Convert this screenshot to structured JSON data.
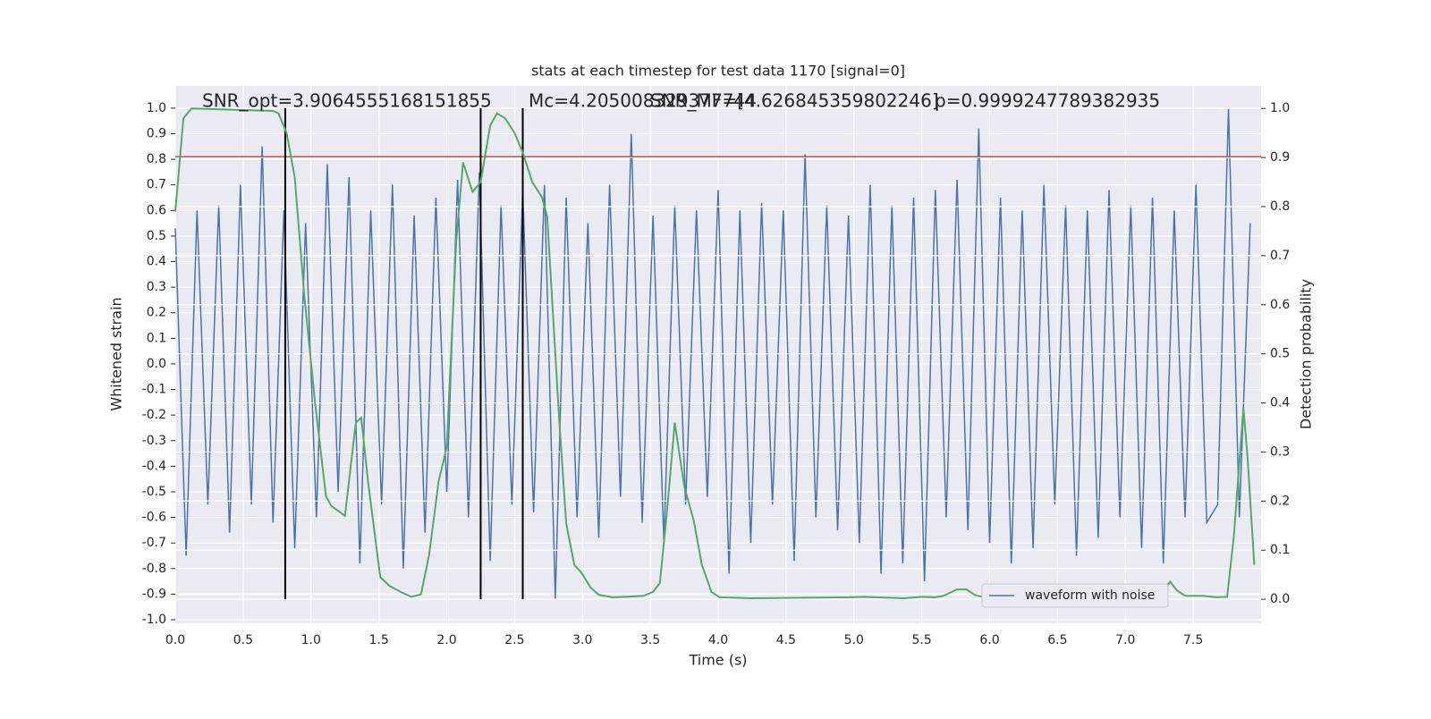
{
  "chart_data": {
    "type": "line",
    "title": "stats at each timestep for test data 1170 [signal=0]",
    "xlabel": "Time (s)",
    "ylabel": "Whitened strain",
    "y2label": "Detection probability",
    "annotations": [
      "SNR_opt=3.9064555168151855",
      "Mc=4.205008329377744",
      "SNR_MF=[4.626845359802246]",
      "p=0.9999247789382935"
    ],
    "xlim": [
      0,
      8.0
    ],
    "ylim": [
      -1.014,
      1.087
    ],
    "y2lim": [
      -0.049,
      1.046
    ],
    "xticks": [
      {
        "value": 0,
        "label": "0.0"
      },
      0.5,
      {
        "value": 1,
        "label": "1.0"
      },
      1.5,
      {
        "value": 2,
        "label": "2.0"
      },
      2.5,
      {
        "value": 3,
        "label": "3.0"
      },
      3.5,
      {
        "value": 4,
        "label": "4.0"
      },
      4.5,
      {
        "value": 5,
        "label": "5.0"
      },
      5.5,
      {
        "value": 6,
        "label": "6.0"
      },
      6.5,
      {
        "value": 7,
        "label": "7.0"
      },
      7.5
    ],
    "yticks": [
      {
        "value": -1,
        "label": "-1.0"
      },
      -0.9,
      -0.8,
      -0.7,
      -0.6,
      -0.5,
      -0.4,
      -0.3,
      -0.2,
      -0.1,
      {
        "value": 0,
        "label": "0.0"
      },
      0.1,
      0.2,
      0.3,
      0.4,
      0.5,
      0.6,
      0.7,
      0.8,
      0.9,
      {
        "value": 1,
        "label": "1.0"
      }
    ],
    "y2ticks": [
      {
        "value": 0,
        "label": "0.0"
      },
      0.1,
      0.2,
      0.3,
      0.4,
      0.5,
      0.6,
      0.7,
      0.8,
      0.9,
      {
        "value": 1,
        "label": "1.0"
      }
    ],
    "grid": true,
    "legend": "lower right",
    "hlines": [
      {
        "value": 0.81,
        "color": "#c44e52"
      }
    ],
    "vlines": [
      {
        "value": 0.81,
        "color": "#000000"
      },
      {
        "value": 2.25,
        "color": "#000000"
      },
      {
        "value": 2.56,
        "color": "#000000"
      }
    ],
    "vline_range": [
      -0.92,
      1.0
    ],
    "series": [
      {
        "name": "waveform with noise",
        "color": "#4c72b0",
        "x": [
          0,
          0.08,
          0.16,
          0.24,
          0.32,
          0.4,
          0.48,
          0.56,
          0.64,
          0.72,
          0.8,
          0.88,
          0.96,
          1.04,
          1.12,
          1.2,
          1.28,
          1.36,
          1.44,
          1.52,
          1.6,
          1.68,
          1.76,
          1.84,
          1.92,
          2.0,
          2.08,
          2.16,
          2.24,
          2.32,
          2.4,
          2.48,
          2.56,
          2.64,
          2.72,
          2.8,
          2.88,
          2.96,
          3.04,
          3.12,
          3.2,
          3.28,
          3.36,
          3.44,
          3.52,
          3.6,
          3.68,
          3.76,
          3.84,
          3.92,
          4.0,
          4.08,
          4.16,
          4.24,
          4.32,
          4.4,
          4.48,
          4.56,
          4.64,
          4.72,
          4.8,
          4.88,
          4.96,
          5.04,
          5.12,
          5.2,
          5.28,
          5.36,
          5.44,
          5.52,
          5.6,
          5.68,
          5.76,
          5.84,
          5.92,
          6.0,
          6.08,
          6.16,
          6.24,
          6.32,
          6.4,
          6.48,
          6.56,
          6.64,
          6.72,
          6.8,
          6.88,
          6.96,
          7.04,
          7.12,
          7.2,
          7.28,
          7.36,
          7.44,
          7.52,
          7.6,
          7.68,
          7.76,
          7.84,
          7.92
        ],
        "values": [
          0.53,
          -0.75,
          0.6,
          -0.55,
          0.62,
          -0.66,
          0.7,
          -0.55,
          0.85,
          -0.62,
          0.6,
          -0.72,
          0.55,
          -0.6,
          0.78,
          -0.5,
          0.73,
          -0.78,
          0.6,
          -0.55,
          0.7,
          -0.8,
          0.58,
          -0.66,
          0.65,
          -0.5,
          0.72,
          -0.6,
          0.75,
          -0.77,
          0.62,
          -0.55,
          0.68,
          -0.58,
          0.7,
          -0.92,
          0.65,
          -0.6,
          0.55,
          -0.68,
          0.7,
          -0.52,
          0.9,
          -0.62,
          0.58,
          -0.7,
          0.62,
          -0.55,
          0.6,
          -0.52,
          0.68,
          -0.82,
          0.6,
          -0.7,
          0.63,
          -0.55,
          0.6,
          -0.77,
          0.82,
          -0.6,
          0.62,
          -0.65,
          0.58,
          -0.7,
          0.7,
          -0.82,
          0.62,
          -0.78,
          0.65,
          -0.85,
          0.68,
          -0.6,
          0.72,
          -0.65,
          0.92,
          -0.7,
          0.65,
          -0.78,
          0.6,
          -0.72,
          0.7,
          -0.55,
          0.62,
          -0.75,
          0.6,
          -0.68,
          0.68,
          -0.6,
          0.62,
          -0.72,
          0.65,
          -0.78,
          0.6,
          -0.6,
          0.7,
          -0.62,
          -0.55,
          1.0,
          -0.6,
          0.55
        ]
      },
      {
        "color": "#55a868",
        "axis": "y2",
        "x": [
          0,
          0.06,
          0.12,
          0.72,
          0.76,
          0.82,
          0.88,
          0.95,
          1.03,
          1.11,
          1.15,
          1.25,
          1.33,
          1.37,
          1.42,
          1.51,
          1.58,
          1.66,
          1.74,
          1.81,
          1.87,
          1.94,
          2.0,
          2.07,
          2.12,
          2.19,
          2.25,
          2.32,
          2.37,
          2.43,
          2.5,
          2.56,
          2.63,
          2.7,
          2.74,
          2.83,
          2.88,
          2.94,
          2.99,
          3.06,
          3.12,
          3.22,
          3.32,
          3.45,
          3.52,
          3.57,
          3.62,
          3.68,
          3.75,
          3.82,
          3.88,
          3.95,
          4.01,
          4.24,
          4.97,
          5.07,
          5.37,
          5.5,
          5.6,
          5.66,
          5.76,
          5.83,
          5.89,
          5.96,
          6.16,
          6.32,
          6.39,
          6.45,
          6.55,
          6.92,
          7.01,
          7.08,
          7.14,
          7.21,
          7.28,
          7.33,
          7.38,
          7.44,
          7.57,
          7.67,
          7.75,
          7.8,
          7.87,
          7.9,
          7.95
        ],
        "values": [
          0.79,
          0.98,
          1.0,
          0.995,
          0.99,
          0.95,
          0.86,
          0.62,
          0.4,
          0.21,
          0.19,
          0.17,
          0.36,
          0.37,
          0.24,
          0.045,
          0.027,
          0.015,
          0.005,
          0.01,
          0.09,
          0.24,
          0.31,
          0.73,
          0.89,
          0.83,
          0.85,
          0.965,
          0.99,
          0.98,
          0.95,
          0.91,
          0.85,
          0.82,
          0.78,
          0.36,
          0.155,
          0.07,
          0.055,
          0.024,
          0.009,
          0.004,
          0.005,
          0.007,
          0.015,
          0.033,
          0.17,
          0.36,
          0.23,
          0.16,
          0.07,
          0.015,
          0.004,
          0.002,
          0.004,
          0.005,
          0.002,
          0.005,
          0.004,
          0.007,
          0.02,
          0.02,
          0.009,
          0.004,
          0.005,
          0.007,
          0.015,
          0.005,
          0.002,
          0.002,
          0.009,
          0.016,
          0.018,
          0.013,
          0.018,
          0.036,
          0.018,
          0.007,
          0.007,
          0.004,
          0.005,
          0.13,
          0.39,
          0.29,
          0.07
        ]
      }
    ]
  }
}
